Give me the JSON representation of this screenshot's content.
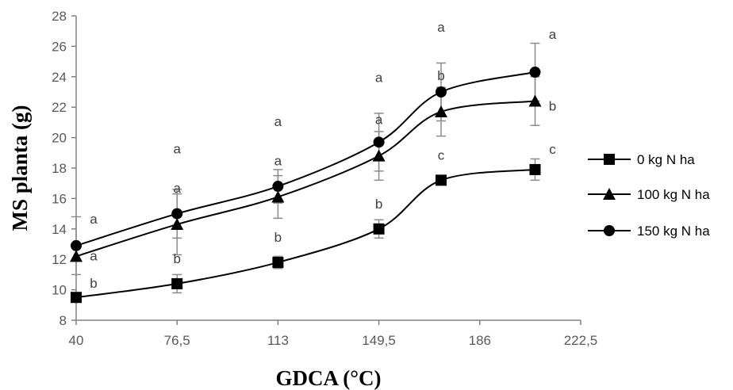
{
  "chart_data": {
    "type": "line",
    "xlabel": "GDCA (°C)",
    "ylabel": "MS planta  (g)",
    "xlim": [
      40,
      222.5
    ],
    "ylim": [
      8,
      28
    ],
    "x_ticks": [
      "40",
      "76,5",
      "113",
      "149,5",
      "186",
      "222,5"
    ],
    "x_tick_values": [
      40,
      76.5,
      113,
      149.5,
      186,
      222.5
    ],
    "y_ticks": [
      "8",
      "10",
      "12",
      "14",
      "16",
      "18",
      "20",
      "22",
      "24",
      "26",
      "28"
    ],
    "y_tick_values": [
      8,
      10,
      12,
      14,
      16,
      18,
      20,
      22,
      24,
      26,
      28
    ],
    "legend_position": "right",
    "series": [
      {
        "name": "0 kg N ha",
        "marker": "square",
        "color": "#000000",
        "x": [
          40,
          76.5,
          113,
          149.5,
          172,
          206
        ],
        "y": [
          9.5,
          10.4,
          11.8,
          14.0,
          17.2,
          17.9
        ],
        "error": [
          0,
          0.6,
          0.4,
          0.6,
          0.2,
          0.7
        ],
        "letters": [
          "b",
          "b",
          "b",
          "b",
          "c",
          "c"
        ]
      },
      {
        "name": "100 kg N ha",
        "marker": "triangle",
        "color": "#000000",
        "x": [
          40,
          76.5,
          113,
          149.5,
          172,
          206
        ],
        "y": [
          12.2,
          14.3,
          16.1,
          18.8,
          21.7,
          22.4
        ],
        "error": [
          0,
          2.0,
          1.4,
          1.6,
          1.6,
          1.6
        ],
        "letters": [
          "a",
          "a",
          "a",
          "a",
          "b",
          "b"
        ]
      },
      {
        "name": "150 kg N ha",
        "marker": "circle",
        "color": "#000000",
        "x": [
          40,
          76.5,
          113,
          149.5,
          172,
          206
        ],
        "y": [
          12.9,
          15.0,
          16.8,
          19.7,
          23.0,
          24.3
        ],
        "error": [
          1.9,
          1.6,
          1.1,
          1.9,
          1.9,
          1.9
        ],
        "letters": [
          "a",
          "a",
          "a",
          "a",
          "a",
          "a"
        ]
      }
    ]
  }
}
